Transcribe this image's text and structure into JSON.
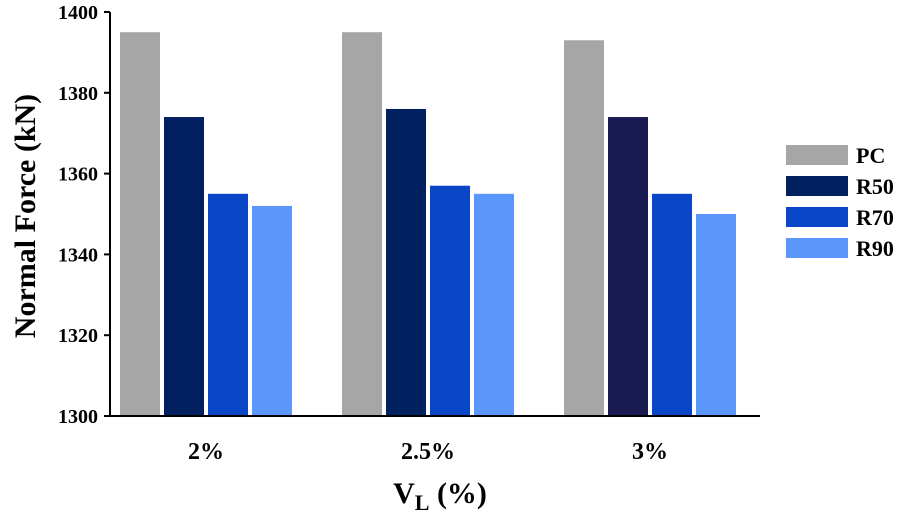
{
  "chart_data": {
    "type": "bar",
    "categories": [
      "2%",
      "2.5%",
      "3%"
    ],
    "series": [
      {
        "name": "PC",
        "color": "#a6a6a6",
        "values": [
          1395,
          1395,
          1393
        ]
      },
      {
        "name": "R50",
        "color": "#002060",
        "values": [
          1374,
          1376,
          1374
        ]
      },
      {
        "name": "R70",
        "color": "#0a46c8",
        "values": [
          1355,
          1357,
          1355
        ]
      },
      {
        "name": "R90",
        "color": "#5b97fb",
        "values": [
          1352,
          1355,
          1350
        ]
      }
    ],
    "category_colors": [
      [
        "#a6a6a6",
        "#002060",
        "#0a46c8",
        "#5b97fb"
      ],
      [
        "#a6a6a6",
        "#002060",
        "#0a46c8",
        "#5b97fb"
      ],
      [
        "#a6a6a6",
        "#1a1a52",
        "#0a46c8",
        "#5b97fb"
      ]
    ],
    "ylabel": "Normal Force (kN)",
    "xlabel_main": "V",
    "xlabel_sub": "L",
    "xlabel_rest": " (%)",
    "ylim": [
      1300,
      1400
    ],
    "yticks": [
      1300,
      1320,
      1340,
      1360,
      1380,
      1400
    ],
    "grid": false,
    "legend_position": "right"
  }
}
